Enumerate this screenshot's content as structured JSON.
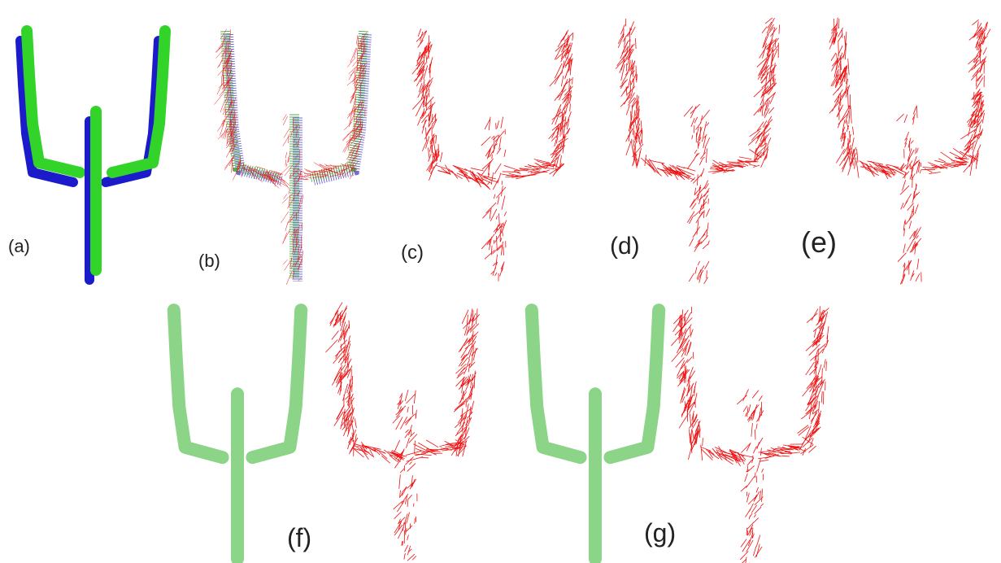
{
  "panels": [
    "(a)",
    "(b)",
    "(c)",
    "(d)",
    "(e)",
    "(f)",
    "(g)"
  ]
}
